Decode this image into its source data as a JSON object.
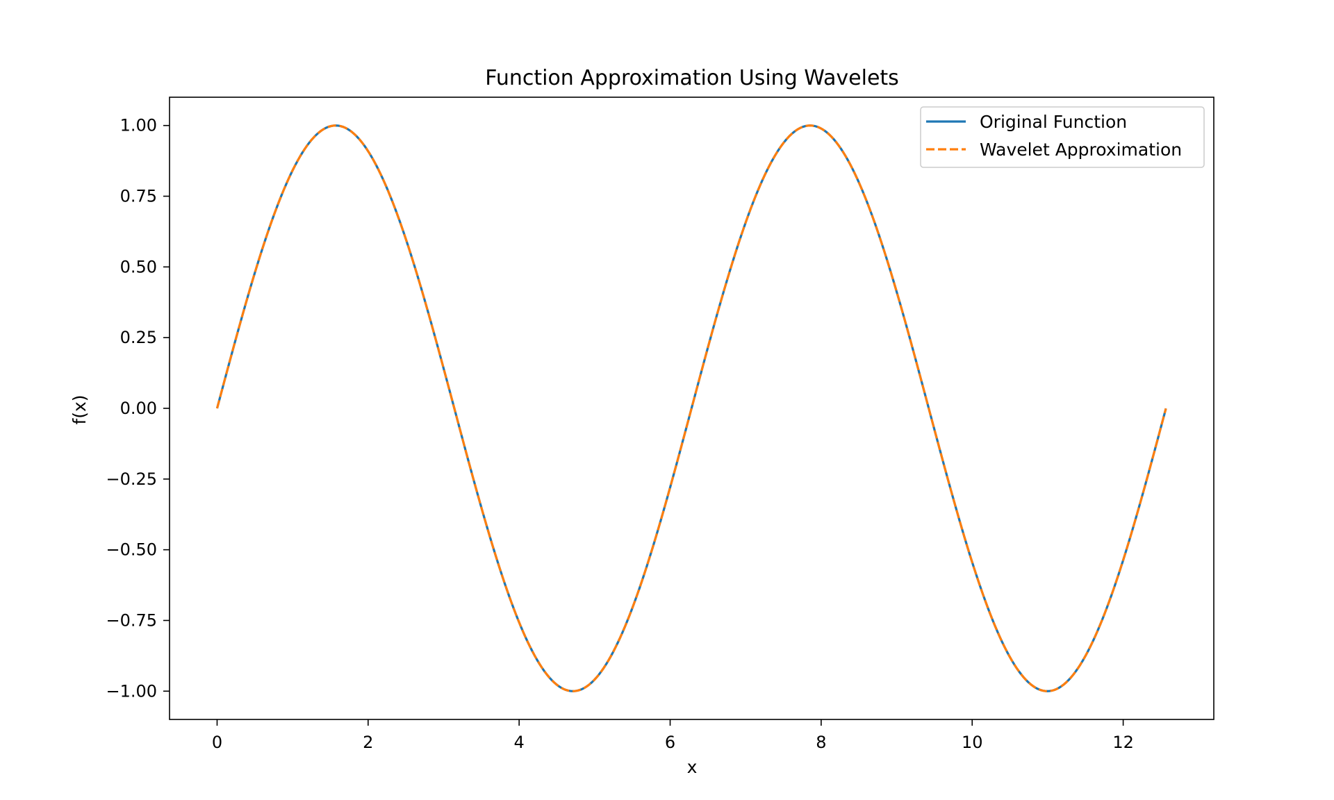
{
  "chart_data": {
    "type": "line",
    "title": "Function Approximation Using Wavelets",
    "xlabel": "x",
    "ylabel": "f(x)",
    "xlim": [
      -0.63,
      13.2
    ],
    "ylim": [
      -1.1,
      1.1
    ],
    "x_ticks": [
      0,
      2,
      4,
      6,
      8,
      10,
      12
    ],
    "x_tick_labels": [
      "0",
      "2",
      "4",
      "6",
      "8",
      "10",
      "12"
    ],
    "y_ticks": [
      1.0,
      0.75,
      0.5,
      0.25,
      0.0,
      -0.25,
      -0.5,
      -0.75,
      -1.0
    ],
    "y_tick_labels": [
      "1.00",
      "0.75",
      "0.50",
      "0.25",
      "0.00",
      "−0.25",
      "−0.50",
      "−0.75",
      "−1.00"
    ],
    "grid": false,
    "legend_position": "top-right",
    "x_range": [
      0,
      12.566
    ],
    "series": [
      {
        "name": "Original Function",
        "color": "#1f77b4",
        "line_style": "solid",
        "function": "sin(x)",
        "points": [
          [
            0.0,
            0.0
          ],
          [
            0.785,
            0.707
          ],
          [
            1.571,
            1.0
          ],
          [
            2.356,
            0.707
          ],
          [
            3.142,
            0.0
          ],
          [
            3.927,
            -0.707
          ],
          [
            4.712,
            -1.0
          ],
          [
            5.498,
            -0.707
          ],
          [
            6.283,
            0.0
          ],
          [
            7.069,
            0.707
          ],
          [
            7.854,
            1.0
          ],
          [
            8.639,
            0.707
          ],
          [
            9.425,
            0.0
          ],
          [
            10.21,
            -0.707
          ],
          [
            10.996,
            -1.0
          ],
          [
            11.781,
            -0.707
          ],
          [
            12.566,
            0.0
          ]
        ]
      },
      {
        "name": "Wavelet Approximation",
        "color": "#ff7f0e",
        "line_style": "dashed",
        "function": "sin(x)",
        "points": [
          [
            0.0,
            0.0
          ],
          [
            0.785,
            0.707
          ],
          [
            1.571,
            1.0
          ],
          [
            2.356,
            0.707
          ],
          [
            3.142,
            0.0
          ],
          [
            3.927,
            -0.707
          ],
          [
            4.712,
            -1.0
          ],
          [
            5.498,
            -0.707
          ],
          [
            6.283,
            0.0
          ],
          [
            7.069,
            0.707
          ],
          [
            7.854,
            1.0
          ],
          [
            8.639,
            0.707
          ],
          [
            9.425,
            0.0
          ],
          [
            10.21,
            -0.707
          ],
          [
            10.996,
            -1.0
          ],
          [
            11.781,
            -0.707
          ],
          [
            12.566,
            0.0
          ]
        ]
      }
    ]
  }
}
